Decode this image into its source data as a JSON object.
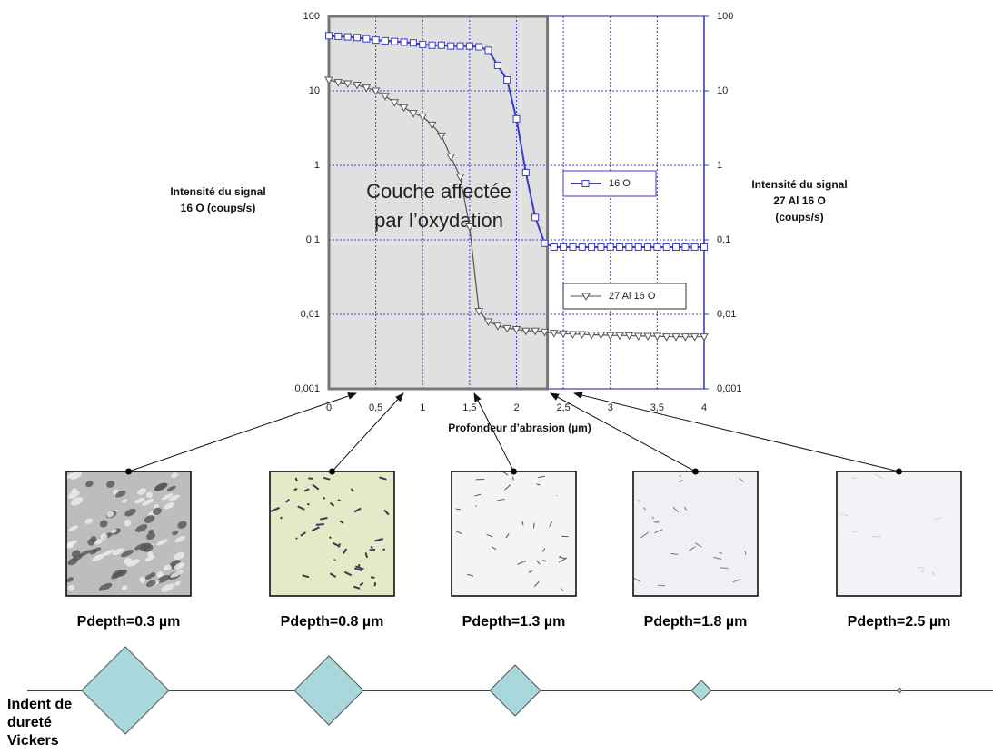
{
  "chart_data": {
    "type": "line",
    "log_scale": true,
    "grid": true,
    "x": [
      0,
      0.1,
      0.2,
      0.3,
      0.4,
      0.5,
      0.6,
      0.7,
      0.8,
      0.9,
      1.0,
      1.1,
      1.2,
      1.3,
      1.4,
      1.5,
      1.6,
      1.7,
      1.8,
      1.9,
      2.0,
      2.1,
      2.2,
      2.3,
      2.4,
      2.5,
      2.6,
      2.7,
      2.8,
      2.9,
      3.0,
      3.1,
      3.2,
      3.3,
      3.4,
      3.5,
      3.6,
      3.7,
      3.8,
      3.9,
      4.0
    ],
    "series": [
      {
        "name": "16 O",
        "color": "#3b3bc8",
        "marker": "square",
        "values": [
          55,
          54,
          53,
          52,
          50,
          48,
          47,
          46,
          45,
          44,
          42,
          41,
          41,
          40,
          40,
          40,
          39,
          35,
          22,
          14,
          4.2,
          0.8,
          0.2,
          0.09,
          0.08,
          0.08,
          0.08,
          0.08,
          0.08,
          0.08,
          0.08,
          0.08,
          0.08,
          0.08,
          0.08,
          0.08,
          0.08,
          0.08,
          0.08,
          0.08,
          0.08
        ]
      },
      {
        "name": "27 Al 16 O",
        "color": "#555555",
        "marker": "triangle-down",
        "axis": "y2",
        "values": [
          14,
          13,
          12.5,
          12,
          11,
          10,
          8.5,
          7,
          6,
          5,
          4.5,
          3.5,
          2.5,
          1.3,
          0.7,
          0.15,
          0.011,
          0.008,
          0.007,
          0.0065,
          0.0063,
          0.006,
          0.006,
          0.0058,
          0.0056,
          0.0055,
          0.0054,
          0.0054,
          0.0053,
          0.0053,
          0.0052,
          0.0052,
          0.0052,
          0.0051,
          0.0051,
          0.0051,
          0.005,
          0.005,
          0.005,
          0.005,
          0.005
        ]
      }
    ],
    "xlim": [
      0,
      4
    ],
    "xticks": [
      0,
      {
        "value": 0.5,
        "label": "0,5"
      },
      1,
      {
        "value": 1.5,
        "label": "1,5"
      },
      2,
      {
        "value": 2.5,
        "label": "2,5"
      },
      3,
      {
        "value": 3.5,
        "label": "3,5"
      },
      4
    ],
    "ylim": [
      0.001,
      100
    ],
    "yticks": [
      {
        "value": 0.001,
        "label": "0,001"
      },
      {
        "value": 0.01,
        "label": "0,01"
      },
      {
        "value": 0.1,
        "label": "0,1"
      },
      1,
      10,
      100
    ],
    "y2lim": [
      0.001,
      100
    ],
    "y2ticks": [
      {
        "value": 0.001,
        "label": "0,001"
      },
      {
        "value": 0.01,
        "label": "0,01"
      },
      {
        "value": 0.1,
        "label": "0,1"
      },
      1,
      10,
      100
    ],
    "xlabel": "Profondeur d’abrasion (µm)",
    "ylabel": [
      "Intensité du signal",
      "16 O (coups/s)"
    ],
    "y2label": [
      "Intensité du signal",
      "27 Al 16 O",
      "(coups/s)"
    ],
    "highlight_xlim": [
      0,
      2.33
    ],
    "annotation": [
      "Couche affectée",
      "par l’oxydation"
    ]
  },
  "panels": [
    "Pdepth=0.3 µm",
    "Pdepth=0.8 µm",
    "Pdepth=1.3 µm",
    "Pdepth=1.8 µm",
    "Pdepth=2.5 µm"
  ],
  "indent_label": [
    "Indent de",
    "dureté",
    "Vickers"
  ]
}
